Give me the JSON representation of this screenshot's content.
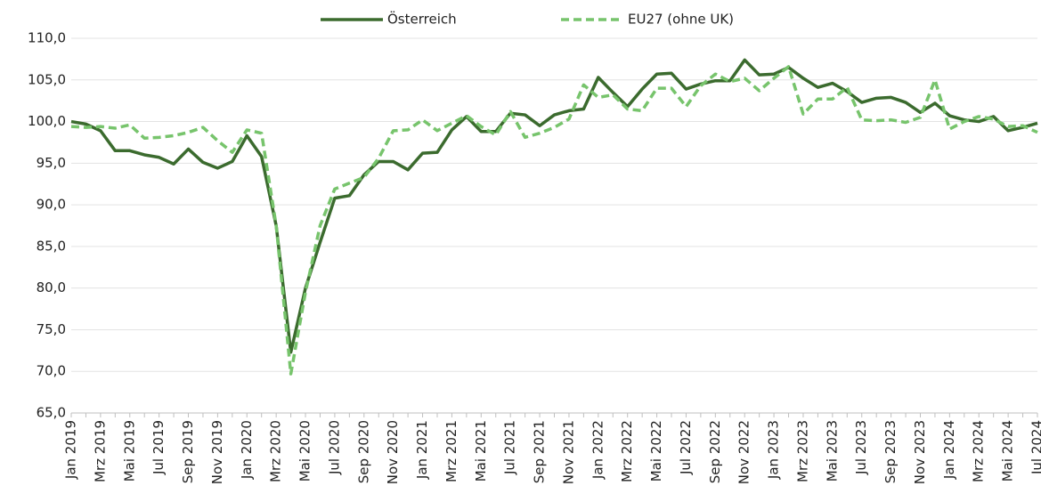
{
  "chart_data": {
    "type": "line",
    "categories": [
      "Jan 2019",
      null,
      "Mrz 2019",
      null,
      "Mai 2019",
      null,
      "Jul 2019",
      null,
      "Sep 2019",
      null,
      "Nov 2019",
      null,
      "Jan 2020",
      null,
      "Mrz 2020",
      null,
      "Mai 2020",
      null,
      "Jul 2020",
      null,
      "Sep 2020",
      null,
      "Nov 2020",
      null,
      "Jan 2021",
      null,
      "Mrz 2021",
      null,
      "Mai 2021",
      null,
      "Jul 2021",
      null,
      "Sep 2021",
      null,
      "Nov 2021",
      null,
      "Jan 2022",
      null,
      "Mrz 2022",
      null,
      "Mai 2022",
      null,
      "Jul 2022",
      null,
      "Sep 2022",
      null,
      "Nov 2022",
      null,
      "Jan 2023",
      null,
      "Mrz 2023",
      null,
      "Mai 2023",
      null,
      "Jul 2023",
      null,
      "Sep 2023",
      null,
      "Nov 2023",
      null,
      "Jan 2024",
      null,
      "Mrz 2024",
      null,
      "Mai 2024",
      null,
      "Jul 2024"
    ],
    "series": [
      {
        "name": "Österreich",
        "color": "#3b6b2e",
        "dash": false,
        "values": [
          100.0,
          99.7,
          98.9,
          96.5,
          96.5,
          96.0,
          95.7,
          94.9,
          96.7,
          95.1,
          94.4,
          95.2,
          98.3,
          95.8,
          87.5,
          72.3,
          80.0,
          85.5,
          90.8,
          91.1,
          93.6,
          95.2,
          95.2,
          94.2,
          96.2,
          96.3,
          99.0,
          100.6,
          98.8,
          98.8,
          101.0,
          100.8,
          99.5,
          100.8,
          101.3,
          101.5,
          105.3,
          103.5,
          101.8,
          103.9,
          105.7,
          105.8,
          103.9,
          104.5,
          104.9,
          104.9,
          107.4,
          105.6,
          105.7,
          106.5,
          105.2,
          104.1,
          104.6,
          103.6,
          102.3,
          102.8,
          102.9,
          102.3,
          101.1,
          102.2,
          100.7,
          100.2,
          100.0,
          100.6,
          98.9,
          99.3,
          99.8
        ]
      },
      {
        "name": "EU27 (ohne UK)",
        "color": "#77c46c",
        "dash": true,
        "values": [
          99.4,
          99.3,
          99.4,
          99.2,
          99.6,
          98.0,
          98.1,
          98.3,
          98.7,
          99.3,
          97.7,
          96.3,
          99.0,
          98.6,
          87.5,
          69.7,
          79.5,
          87.5,
          91.9,
          92.6,
          93.3,
          95.6,
          98.9,
          99.0,
          100.2,
          98.9,
          99.8,
          100.7,
          99.4,
          98.4,
          101.2,
          98.1,
          98.6,
          99.3,
          100.3,
          104.4,
          102.9,
          103.2,
          101.5,
          101.3,
          104.0,
          104.0,
          101.8,
          104.3,
          105.7,
          104.8,
          105.2,
          103.7,
          105.2,
          106.6,
          100.9,
          102.7,
          102.7,
          104.1,
          100.2,
          100.1,
          100.2,
          99.9,
          100.5,
          105.0,
          99.1,
          100.0,
          100.6,
          100.3,
          99.4,
          99.5,
          98.7
        ]
      }
    ],
    "ylim": [
      65,
      110
    ],
    "yticks": [
      {
        "value": 65,
        "label": "65,0"
      },
      {
        "value": 70,
        "label": "70,0"
      },
      {
        "value": 75,
        "label": "75,0"
      },
      {
        "value": 80,
        "label": "80,0"
      },
      {
        "value": 85,
        "label": "85,0"
      },
      {
        "value": 90,
        "label": "90,0"
      },
      {
        "value": 95,
        "label": "95,0"
      },
      {
        "value": 100,
        "label": "100,0"
      },
      {
        "value": 105,
        "label": "105,0"
      },
      {
        "value": 110,
        "label": "110,0"
      }
    ],
    "grid": true,
    "legend": "top"
  }
}
